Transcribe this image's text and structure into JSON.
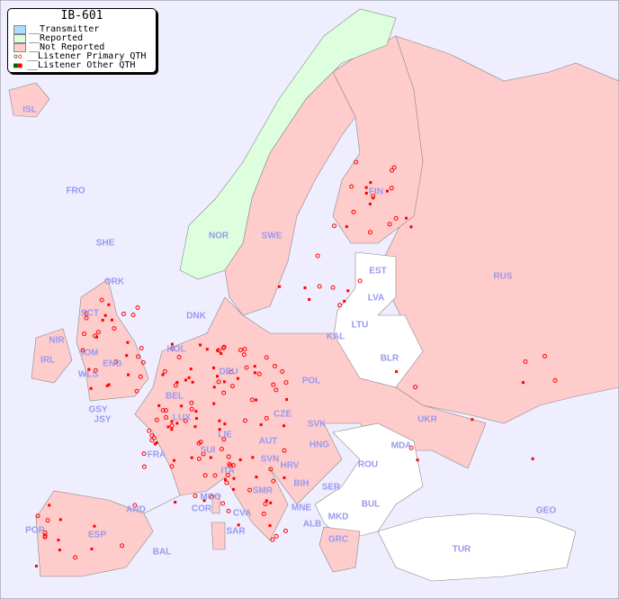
{
  "title": "IB-601",
  "legend": [
    {
      "label": "__Transmitter",
      "color": "#aaddff"
    },
    {
      "label": "__Reported",
      "color": "#ddffdd"
    },
    {
      "label": "__Not Reported",
      "color": "#ffcccc"
    },
    {
      "label": "__Listener Primary QTH",
      "symbol": "circle"
    },
    {
      "label": "__Listener Other QTH",
      "symbol": "square"
    }
  ],
  "colors": {
    "sea": "#eeeeff",
    "not_reported": "#ffcccc",
    "reported": "#ddffdd",
    "no_data": "#ffffff",
    "marker": "#ff0000",
    "label": "#9999ee"
  },
  "countries": [
    "ISL",
    "FRO",
    "SHE",
    "ORK",
    "NOR",
    "SWE",
    "FIN",
    "EST",
    "LVA",
    "LTU",
    "RUS",
    "DNK",
    "KAL",
    "BLR",
    "HOL",
    "DEU",
    "POL",
    "NIR",
    "SCT",
    "IOM",
    "IRL",
    "WLS",
    "ENG",
    "GSY",
    "JSY",
    "LUX",
    "BEL",
    "CZE",
    "SVK",
    "UKR",
    "MDA",
    "FRA",
    "SUI",
    "LIE",
    "AUT",
    "HNG",
    "SVN",
    "HRV",
    "ROU",
    "ITA",
    "BIH",
    "SER",
    "SMR",
    "MCO",
    "COR",
    "CVA",
    "MNE",
    "BUL",
    "GEO",
    "AND",
    "MKD",
    "ALB",
    "POR",
    "ESP",
    "SAR",
    "BAL",
    "GRC",
    "TUR"
  ]
}
